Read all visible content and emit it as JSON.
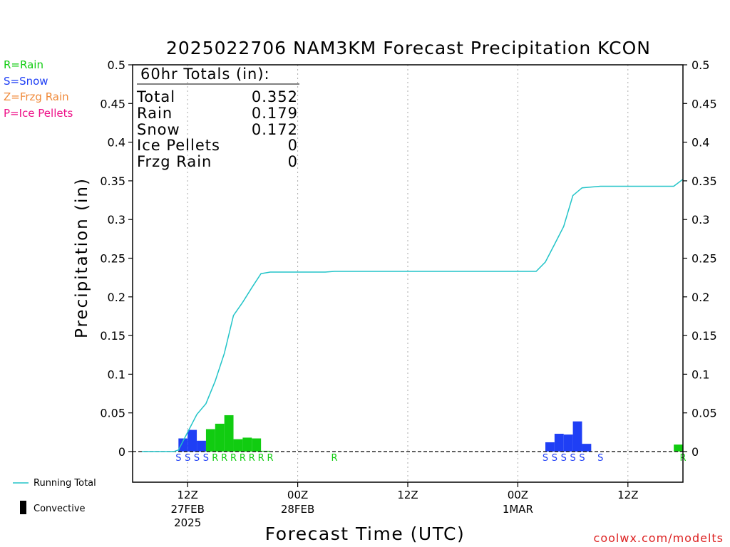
{
  "chart_data": {
    "type": "bar",
    "title": "2025022706 NAM3KM Forecast Precipitation KCON",
    "xlabel": "Forecast Time (UTC)",
    "ylabel": "Precipitation (in)",
    "ylim": [
      -0.04,
      0.5
    ],
    "yticks": [
      "0",
      "0.05",
      "0.1",
      "0.15",
      "0.2",
      "0.25",
      "0.3",
      "0.35",
      "0.4",
      "0.45",
      "0.5"
    ],
    "xlim_hours": [
      -6,
      54
    ],
    "x_ticks": [
      {
        "hour": 0,
        "label": "12Z",
        "date": "27FEB",
        "year": "2025"
      },
      {
        "hour": 12,
        "label": "00Z",
        "date": "28FEB",
        "year": ""
      },
      {
        "hour": 24,
        "label": "12Z",
        "date": "",
        "year": ""
      },
      {
        "hour": 36,
        "label": "00Z",
        "date": "1MAR",
        "year": ""
      },
      {
        "hour": 48,
        "label": "12Z",
        "date": "",
        "year": ""
      }
    ],
    "grid": "vertical dotted at x ticks",
    "legend": "left margin",
    "colors": {
      "rain": "#11cc11",
      "snow": "#1f3ff5",
      "frzg_rain": "#f08a3a",
      "ice_pellets": "#ee1188",
      "running_total": "#22c4c8",
      "axis": "#000000"
    },
    "series": [
      {
        "name": "Snow",
        "bars": [
          {
            "hour": -0.5,
            "value": 0.017
          },
          {
            "hour": 0.5,
            "value": 0.028
          },
          {
            "hour": 1.5,
            "value": 0.014
          },
          {
            "hour": 39.5,
            "value": 0.012
          },
          {
            "hour": 40.5,
            "value": 0.023
          },
          {
            "hour": 41.5,
            "value": 0.022
          },
          {
            "hour": 42.5,
            "value": 0.039
          },
          {
            "hour": 43.5,
            "value": 0.01
          }
        ]
      },
      {
        "name": "Rain",
        "bars": [
          {
            "hour": 2.5,
            "value": 0.029
          },
          {
            "hour": 3.5,
            "value": 0.036
          },
          {
            "hour": 4.5,
            "value": 0.047
          },
          {
            "hour": 5.5,
            "value": 0.016
          },
          {
            "hour": 6.5,
            "value": 0.018
          },
          {
            "hour": 7.5,
            "value": 0.017
          },
          {
            "hour": 8.5,
            "value": 0.001
          },
          {
            "hour": 53.5,
            "value": 0.009
          }
        ]
      },
      {
        "name": "Running Total",
        "points": [
          {
            "hour": -5,
            "value": 0
          },
          {
            "hour": -1.5,
            "value": 0
          },
          {
            "hour": -1,
            "value": 0.002
          },
          {
            "hour": 0,
            "value": 0.025
          },
          {
            "hour": 1,
            "value": 0.048
          },
          {
            "hour": 2,
            "value": 0.062
          },
          {
            "hour": 3,
            "value": 0.091
          },
          {
            "hour": 4,
            "value": 0.127
          },
          {
            "hour": 5,
            "value": 0.176
          },
          {
            "hour": 6,
            "value": 0.193
          },
          {
            "hour": 7,
            "value": 0.212
          },
          {
            "hour": 8,
            "value": 0.23
          },
          {
            "hour": 9,
            "value": 0.232
          },
          {
            "hour": 15,
            "value": 0.232
          },
          {
            "hour": 16,
            "value": 0.233
          },
          {
            "hour": 38,
            "value": 0.233
          },
          {
            "hour": 39,
            "value": 0.245
          },
          {
            "hour": 40,
            "value": 0.268
          },
          {
            "hour": 41,
            "value": 0.291
          },
          {
            "hour": 42,
            "value": 0.331
          },
          {
            "hour": 43,
            "value": 0.341
          },
          {
            "hour": 45,
            "value": 0.343
          },
          {
            "hour": 53,
            "value": 0.343
          },
          {
            "hour": 54,
            "value": 0.352
          }
        ]
      }
    ],
    "ptype_letters": [
      {
        "hour": -1,
        "letter": "S",
        "kind": "snow"
      },
      {
        "hour": 0,
        "letter": "S",
        "kind": "snow"
      },
      {
        "hour": 1,
        "letter": "S",
        "kind": "snow"
      },
      {
        "hour": 2,
        "letter": "S",
        "kind": "snow"
      },
      {
        "hour": 3,
        "letter": "R",
        "kind": "rain"
      },
      {
        "hour": 4,
        "letter": "R",
        "kind": "rain"
      },
      {
        "hour": 5,
        "letter": "R",
        "kind": "rain"
      },
      {
        "hour": 6,
        "letter": "R",
        "kind": "rain"
      },
      {
        "hour": 7,
        "letter": "R",
        "kind": "rain"
      },
      {
        "hour": 8,
        "letter": "R",
        "kind": "rain"
      },
      {
        "hour": 9,
        "letter": "R",
        "kind": "rain"
      },
      {
        "hour": 16,
        "letter": "R",
        "kind": "rain"
      },
      {
        "hour": 39,
        "letter": "S",
        "kind": "snow"
      },
      {
        "hour": 40,
        "letter": "S",
        "kind": "snow"
      },
      {
        "hour": 41,
        "letter": "S",
        "kind": "snow"
      },
      {
        "hour": 42,
        "letter": "S",
        "kind": "snow"
      },
      {
        "hour": 43,
        "letter": "S",
        "kind": "snow"
      },
      {
        "hour": 45,
        "letter": "S",
        "kind": "snow"
      },
      {
        "hour": 54,
        "letter": "R",
        "kind": "rain"
      }
    ]
  },
  "totals_box": {
    "header": "60hr Totals (in):",
    "rows": [
      {
        "label": "Total",
        "value": "0.352"
      },
      {
        "label": "Rain",
        "value": "0.179"
      },
      {
        "label": "Snow",
        "value": "0.172"
      },
      {
        "label": "Ice Pellets",
        "value": "0"
      },
      {
        "label": "Frzg Rain",
        "value": "0"
      }
    ]
  },
  "ptype_legend": [
    {
      "text": "R=Rain",
      "kind": "rain"
    },
    {
      "text": "S=Snow",
      "kind": "snow"
    },
    {
      "text": "Z=Frzg Rain",
      "kind": "frzg_rain"
    },
    {
      "text": "P=Ice Pellets",
      "kind": "ice_pellets"
    }
  ],
  "bottom_legend": {
    "running_total": "Running Total",
    "convective": "Convective"
  },
  "credit": "coolwx.com/modelts"
}
